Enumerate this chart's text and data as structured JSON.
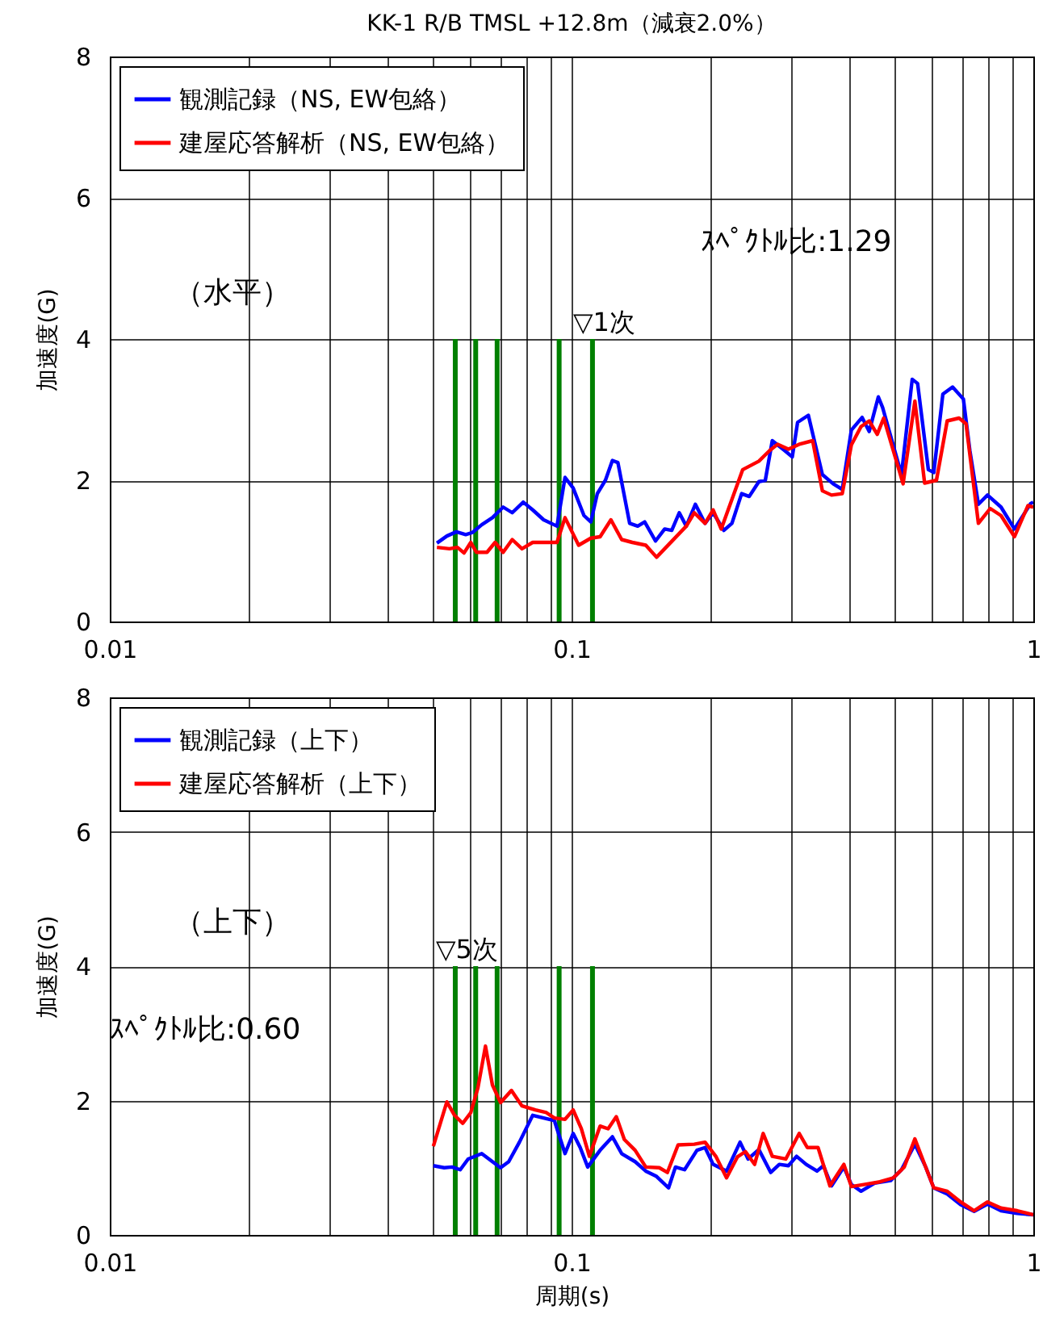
{
  "chart_data": [
    {
      "type": "line",
      "title": "KK-1 R/B TMSL +12.8m（減衰2.0%）",
      "ylabel": "加速度(G)",
      "log": "x",
      "grid": true,
      "legend": "top left",
      "xlim": [
        0.01,
        1
      ],
      "xticks": [
        0.01,
        {
          "value": 0.02,
          "label": null
        },
        {
          "value": 0.03,
          "label": null
        },
        {
          "value": 0.04,
          "label": null
        },
        {
          "value": 0.05,
          "label": null
        },
        {
          "value": 0.06,
          "label": null
        },
        {
          "value": 0.07,
          "label": null
        },
        {
          "value": 0.08,
          "label": null
        },
        {
          "value": 0.09,
          "label": null
        },
        0.1,
        {
          "value": 0.2,
          "label": null
        },
        {
          "value": 0.3,
          "label": null
        },
        {
          "value": 0.4,
          "label": null
        },
        {
          "value": 0.5,
          "label": null
        },
        {
          "value": 0.6,
          "label": null
        },
        {
          "value": 0.7,
          "label": null
        },
        {
          "value": 0.8,
          "label": null
        },
        {
          "value": 0.9,
          "label": null
        },
        1
      ],
      "ylim": [
        0,
        8
      ],
      "yticks": [
        0,
        2,
        4,
        6,
        8
      ],
      "annotations": [
        "（水平）",
        {
          "text": "▽1次",
          "x": 0.111,
          "y": 4
        },
        "ｽﾍﾟｸﾄﾙ比:1.29"
      ],
      "series": [
        {
          "type": "bar",
          "color": "#008000",
          "x": [
            0.056,
            0.062,
            0.069,
            0.094,
            0.111
          ],
          "values": [
            4,
            4,
            4,
            4,
            4
          ]
        },
        {
          "name": "観測記録（NS, EW包絡）",
          "color": "#0000ff",
          "x": [
            0.0511,
            0.0537,
            0.0563,
            0.059,
            0.061,
            0.0639,
            0.0674,
            0.0711,
            0.0744,
            0.0786,
            0.0824,
            0.087,
            0.093,
            0.0968,
            0.1008,
            0.1064,
            0.1101,
            0.1137,
            0.1184,
            0.1226,
            0.126,
            0.1336,
            0.1391,
            0.144,
            0.152,
            0.1591,
            0.1648,
            0.1711,
            0.1772,
            0.1854,
            0.1946,
            0.2026,
            0.2137,
            0.2225,
            0.2335,
            0.2425,
            0.2545,
            0.2628,
            0.2721,
            0.2895,
            0.3006,
            0.3087,
            0.3257,
            0.3493,
            0.3686,
            0.3857,
            0.4036,
            0.4259,
            0.4411,
            0.4617,
            0.4717,
            0.5182,
            0.5467,
            0.5616,
            0.5925,
            0.6087,
            0.637,
            0.6686,
            0.7056,
            0.7288,
            0.7605,
            0.7958,
            0.8512,
            0.9104,
            0.9867,
            1
          ],
          "values": [
            1.11,
            1.21,
            1.27,
            1.23,
            1.26,
            1.37,
            1.47,
            1.62,
            1.54,
            1.69,
            1.58,
            1.44,
            1.35,
            2.04,
            1.89,
            1.5,
            1.41,
            1.81,
            2.0,
            2.28,
            2.25,
            1.39,
            1.35,
            1.41,
            1.14,
            1.31,
            1.29,
            1.54,
            1.35,
            1.66,
            1.39,
            1.54,
            1.29,
            1.39,
            1.81,
            1.77,
            1.98,
            2.0,
            2.56,
            2.42,
            2.33,
            2.82,
            2.92,
            2.08,
            1.95,
            1.87,
            2.71,
            2.89,
            2.69,
            3.18,
            3.03,
            2.08,
            3.43,
            3.37,
            2.15,
            2.11,
            3.22,
            3.32,
            3.15,
            2.42,
            1.66,
            1.79,
            1.62,
            1.31,
            1.67,
            1.69
          ]
        },
        {
          "name": "建屋応答解析（NS, EW包絡）",
          "color": "#ff0000",
          "x": [
            0.0511,
            0.0544,
            0.0566,
            0.0585,
            0.0605,
            0.0622,
            0.0656,
            0.0683,
            0.0711,
            0.0744,
            0.0781,
            0.0824,
            0.093,
            0.0968,
            0.1036,
            0.1101,
            0.1153,
            0.1217,
            0.1284,
            0.1354,
            0.1448,
            0.1528,
            0.1772,
            0.1844,
            0.1946,
            0.2026,
            0.2109,
            0.2348,
            0.2545,
            0.2685,
            0.2795,
            0.2949,
            0.3112,
            0.3328,
            0.3493,
            0.3656,
            0.3857,
            0.4036,
            0.4236,
            0.4411,
            0.4592,
            0.4742,
            0.5224,
            0.554,
            0.5816,
            0.6169,
            0.6509,
            0.6906,
            0.715,
            0.7605,
            0.8066,
            0.8512,
            0.9104,
            0.9734,
            1
          ],
          "values": [
            1.05,
            1.03,
            1.05,
            0.97,
            1.12,
            0.98,
            0.98,
            1.12,
            0.98,
            1.16,
            1.03,
            1.12,
            1.12,
            1.47,
            1.08,
            1.18,
            1.2,
            1.44,
            1.16,
            1.12,
            1.08,
            0.91,
            1.35,
            1.54,
            1.39,
            1.58,
            1.31,
            2.15,
            2.27,
            2.42,
            2.51,
            2.44,
            2.51,
            2.56,
            1.85,
            1.79,
            1.81,
            2.5,
            2.76,
            2.84,
            2.65,
            2.88,
            1.95,
            3.12,
            1.96,
            2.0,
            2.84,
            2.88,
            2.8,
            1.39,
            1.6,
            1.5,
            1.2,
            1.64,
            1.62
          ]
        }
      ]
    },
    {
      "type": "line",
      "xlabel": "周期(s)",
      "ylabel": "加速度(G)",
      "log": "x",
      "grid": true,
      "legend": "top left",
      "xlim": [
        0.01,
        1
      ],
      "xticks": [
        0.01,
        {
          "value": 0.02,
          "label": null
        },
        {
          "value": 0.03,
          "label": null
        },
        {
          "value": 0.04,
          "label": null
        },
        {
          "value": 0.05,
          "label": null
        },
        {
          "value": 0.06,
          "label": null
        },
        {
          "value": 0.07,
          "label": null
        },
        {
          "value": 0.08,
          "label": null
        },
        {
          "value": 0.09,
          "label": null
        },
        0.1,
        {
          "value": 0.2,
          "label": null
        },
        {
          "value": 0.3,
          "label": null
        },
        {
          "value": 0.4,
          "label": null
        },
        {
          "value": 0.5,
          "label": null
        },
        {
          "value": 0.6,
          "label": null
        },
        {
          "value": 0.7,
          "label": null
        },
        {
          "value": 0.8,
          "label": null
        },
        {
          "value": 0.9,
          "label": null
        },
        1
      ],
      "ylim": [
        0,
        8
      ],
      "yticks": [
        0,
        2,
        4,
        6,
        8
      ],
      "annotations": [
        "（上下）",
        {
          "text": "▽5次",
          "x": 0.056,
          "y": 4
        },
        "ｽﾍﾟｸﾄﾙ比:0.60"
      ],
      "series": [
        {
          "type": "bar",
          "color": "#008000",
          "x": [
            0.056,
            0.062,
            0.069,
            0.094,
            0.111
          ],
          "values": [
            4,
            4,
            4,
            4,
            4
          ]
        },
        {
          "name": "観測記録（上下）",
          "color": "#0000ff",
          "x": [
            0.0502,
            0.053,
            0.0551,
            0.0574,
            0.0597,
            0.0639,
            0.0674,
            0.0702,
            0.0731,
            0.0771,
            0.0824,
            0.087,
            0.0918,
            0.0968,
            0.1008,
            0.1044,
            0.1084,
            0.1153,
            0.1226,
            0.1284,
            0.1373,
            0.1448,
            0.1528,
            0.1622,
            0.1679,
            0.1757,
            0.1869,
            0.1946,
            0.2026,
            0.2166,
            0.2317,
            0.2412,
            0.2545,
            0.2699,
            0.2818,
            0.2949,
            0.3071,
            0.3222,
            0.3401,
            0.3512,
            0.3656,
            0.3888,
            0.4036,
            0.4236,
            0.4532,
            0.491,
            0.5182,
            0.554,
            0.5847,
            0.6087,
            0.6509,
            0.6961,
            0.7444,
            0.7958,
            0.8512,
            0.9226,
            1
          ],
          "values": [
            1.03,
            1.0,
            1.01,
            0.97,
            1.13,
            1.21,
            1.09,
            1.0,
            1.09,
            1.38,
            1.78,
            1.74,
            1.7,
            1.21,
            1.51,
            1.3,
            1.01,
            1.26,
            1.46,
            1.21,
            1.09,
            0.95,
            0.87,
            0.7,
            1.01,
            0.97,
            1.26,
            1.3,
            1.05,
            0.95,
            1.38,
            1.13,
            1.27,
            0.93,
            1.05,
            1.03,
            1.17,
            1.05,
            0.95,
            1.03,
            0.73,
            1.01,
            0.75,
            0.65,
            0.77,
            0.81,
            0.97,
            1.35,
            1.01,
            0.7,
            0.61,
            0.45,
            0.35,
            0.46,
            0.36,
            0.32,
            0.3
          ]
        },
        {
          "name": "建屋応答解析（上下）",
          "color": "#ff0000",
          "x": [
            0.0502,
            0.0537,
            0.0558,
            0.0581,
            0.0605,
            0.0627,
            0.0651,
            0.0674,
            0.0702,
            0.0741,
            0.0781,
            0.0835,
            0.0882,
            0.0918,
            0.0968,
            0.1008,
            0.105,
            0.1093,
            0.1153,
            0.12,
            0.125,
            0.1301,
            0.1373,
            0.1448,
            0.1549,
            0.1613,
            0.1701,
            0.1844,
            0.1946,
            0.2053,
            0.2166,
            0.2286,
            0.238,
            0.2491,
            0.26,
            0.2721,
            0.291,
            0.3112,
            0.324,
            0.3419,
            0.3627,
            0.3888,
            0.4036,
            0.4294,
            0.4654,
            0.4977,
            0.5253,
            0.554,
            0.5847,
            0.6087,
            0.6509,
            0.6961,
            0.7444,
            0.7958,
            0.8512,
            0.9226,
            1
          ],
          "values": [
            1.32,
            1.98,
            1.78,
            1.66,
            1.82,
            2.19,
            2.81,
            2.23,
            1.97,
            2.15,
            1.92,
            1.86,
            1.82,
            1.74,
            1.72,
            1.86,
            1.58,
            1.17,
            1.62,
            1.58,
            1.76,
            1.42,
            1.26,
            1.01,
            1.0,
            0.93,
            1.34,
            1.35,
            1.38,
            1.17,
            0.85,
            1.16,
            1.24,
            1.05,
            1.51,
            1.17,
            1.13,
            1.51,
            1.3,
            1.3,
            0.73,
            1.05,
            0.72,
            0.75,
            0.79,
            0.85,
            1.01,
            1.43,
            1.01,
            0.7,
            0.65,
            0.49,
            0.36,
            0.49,
            0.4,
            0.36,
            0.3
          ]
        }
      ]
    }
  ]
}
